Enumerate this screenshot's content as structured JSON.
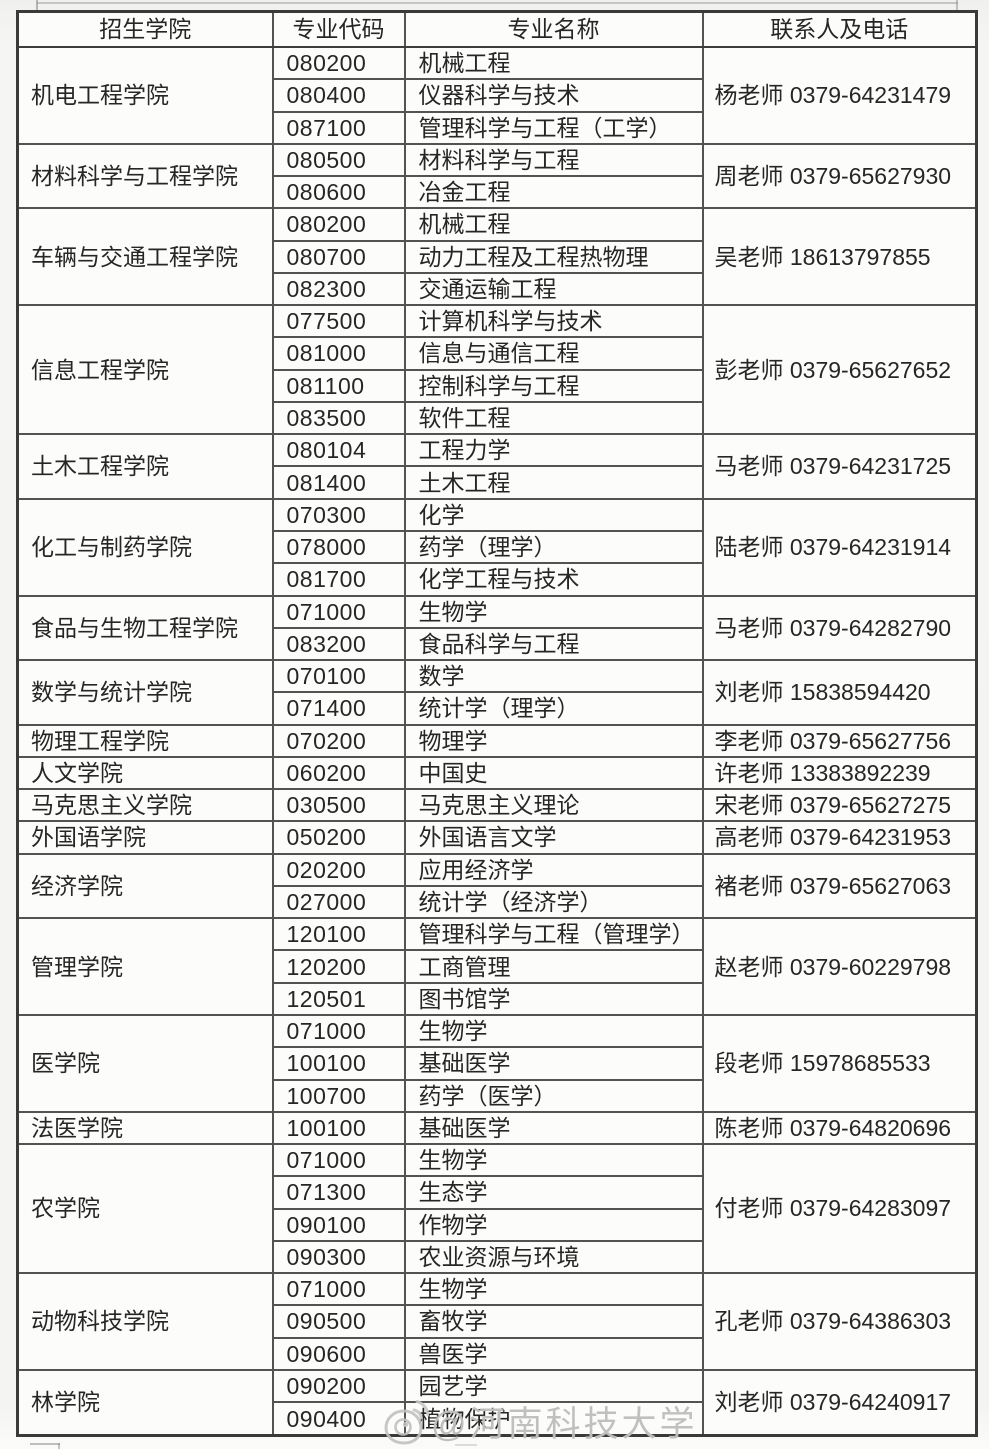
{
  "table": {
    "headers": [
      "招生学院",
      "专业代码",
      "专业名称",
      "联系人及电话"
    ],
    "groups": [
      {
        "college": "机电工程学院",
        "contact": "杨老师 0379-64231479",
        "majors": [
          {
            "code": "080200",
            "name": "机械工程"
          },
          {
            "code": "080400",
            "name": "仪器科学与技术"
          },
          {
            "code": "087100",
            "name": "管理科学与工程（工学）"
          }
        ]
      },
      {
        "college": "材料科学与工程学院",
        "contact": "周老师 0379-65627930",
        "majors": [
          {
            "code": "080500",
            "name": "材料科学与工程"
          },
          {
            "code": "080600",
            "name": "冶金工程"
          }
        ]
      },
      {
        "college": "车辆与交通工程学院",
        "contact": "吴老师 18613797855",
        "majors": [
          {
            "code": "080200",
            "name": "机械工程"
          },
          {
            "code": "080700",
            "name": "动力工程及工程热物理"
          },
          {
            "code": "082300",
            "name": "交通运输工程"
          }
        ]
      },
      {
        "college": "信息工程学院",
        "contact": "彭老师 0379-65627652",
        "majors": [
          {
            "code": "077500",
            "name": "计算机科学与技术"
          },
          {
            "code": "081000",
            "name": "信息与通信工程"
          },
          {
            "code": "081100",
            "name": "控制科学与工程"
          },
          {
            "code": "083500",
            "name": "软件工程"
          }
        ]
      },
      {
        "college": "土木工程学院",
        "contact": "马老师 0379-64231725",
        "majors": [
          {
            "code": "080104",
            "name": "工程力学"
          },
          {
            "code": "081400",
            "name": "土木工程"
          }
        ]
      },
      {
        "college": "化工与制药学院",
        "contact": "陆老师 0379-64231914",
        "majors": [
          {
            "code": "070300",
            "name": "化学"
          },
          {
            "code": "078000",
            "name": "药学（理学）"
          },
          {
            "code": "081700",
            "name": "化学工程与技术"
          }
        ]
      },
      {
        "college": "食品与生物工程学院",
        "contact": "马老师 0379-64282790",
        "majors": [
          {
            "code": "071000",
            "name": "生物学"
          },
          {
            "code": "083200",
            "name": "食品科学与工程"
          }
        ]
      },
      {
        "college": "数学与统计学院",
        "contact": "刘老师 15838594420",
        "majors": [
          {
            "code": "070100",
            "name": "数学"
          },
          {
            "code": "071400",
            "name": "统计学（理学）"
          }
        ]
      },
      {
        "college": "物理工程学院",
        "contact": "李老师 0379-65627756",
        "majors": [
          {
            "code": "070200",
            "name": "物理学"
          }
        ]
      },
      {
        "college": "人文学院",
        "contact": "许老师 13383892239",
        "majors": [
          {
            "code": "060200",
            "name": "中国史"
          }
        ]
      },
      {
        "college": "马克思主义学院",
        "contact": "宋老师 0379-65627275",
        "majors": [
          {
            "code": "030500",
            "name": "马克思主义理论"
          }
        ]
      },
      {
        "college": "外国语学院",
        "contact": "高老师 0379-64231953",
        "majors": [
          {
            "code": "050200",
            "name": "外国语言文学"
          }
        ]
      },
      {
        "college": "经济学院",
        "contact": "褚老师 0379-65627063",
        "majors": [
          {
            "code": "020200",
            "name": "应用经济学"
          },
          {
            "code": "027000",
            "name": "统计学（经济学）"
          }
        ]
      },
      {
        "college": "管理学院",
        "contact": "赵老师 0379-60229798",
        "majors": [
          {
            "code": "120100",
            "name": "管理科学与工程（管理学）"
          },
          {
            "code": "120200",
            "name": "工商管理"
          },
          {
            "code": "120501",
            "name": "图书馆学"
          }
        ]
      },
      {
        "college": "医学院",
        "contact": "段老师 15978685533",
        "majors": [
          {
            "code": "071000",
            "name": "生物学"
          },
          {
            "code": "100100",
            "name": "基础医学"
          },
          {
            "code": "100700",
            "name": "药学（医学）"
          }
        ]
      },
      {
        "college": "法医学院",
        "contact": "陈老师 0379-64820696",
        "majors": [
          {
            "code": "100100",
            "name": "基础医学"
          }
        ]
      },
      {
        "college": "农学院",
        "contact": "付老师 0379-64283097",
        "majors": [
          {
            "code": "071000",
            "name": "生物学"
          },
          {
            "code": "071300",
            "name": "生态学"
          },
          {
            "code": "090100",
            "name": "作物学"
          },
          {
            "code": "090300",
            "name": "农业资源与环境"
          }
        ]
      },
      {
        "college": "动物科技学院",
        "contact": "孔老师 0379-64386303",
        "majors": [
          {
            "code": "071000",
            "name": "生物学"
          },
          {
            "code": "090500",
            "name": "畜牧学"
          },
          {
            "code": "090600",
            "name": "兽医学"
          }
        ]
      },
      {
        "college": "林学院",
        "contact": "刘老师 0379-64240917",
        "majors": [
          {
            "code": "090200",
            "name": "园艺学"
          },
          {
            "code": "090400",
            "name": "植物保护"
          }
        ]
      }
    ]
  },
  "watermark": {
    "text": "@河南科技大学",
    "icon": "weibo-logo"
  },
  "colors": {
    "table_border": "#3a3a3a",
    "cell_border": "#535353",
    "text": "#262626",
    "cell_background": "#fcfcfb",
    "watermark": "#bdbdbb"
  }
}
